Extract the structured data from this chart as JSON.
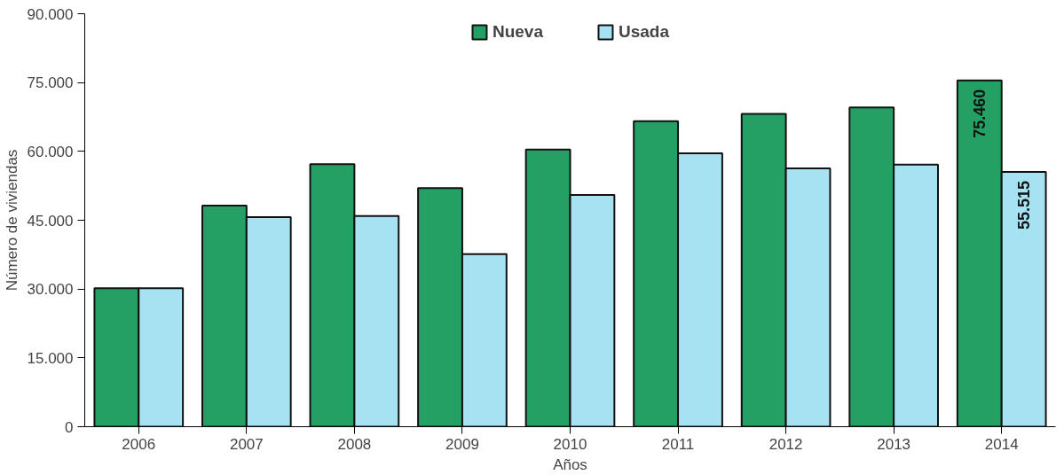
{
  "chart_data": {
    "type": "bar",
    "xlabel": "Años",
    "ylabel": "Número de viviendas",
    "categories": [
      "2006",
      "2007",
      "2008",
      "2009",
      "2010",
      "2011",
      "2012",
      "2013",
      "2014"
    ],
    "series": [
      {
        "name": "Nueva",
        "color": "#25a065",
        "values": [
          30200,
          48200,
          57200,
          52000,
          60400,
          66600,
          68200,
          69600,
          75460
        ],
        "value_labels": [
          null,
          null,
          null,
          null,
          null,
          null,
          null,
          null,
          "75.460"
        ]
      },
      {
        "name": "Usada",
        "color": "#a6e2f2",
        "values": [
          30200,
          45700,
          45900,
          37600,
          50500,
          59600,
          56300,
          57100,
          55515
        ],
        "value_labels": [
          null,
          null,
          null,
          null,
          null,
          null,
          null,
          null,
          "55.515"
        ]
      }
    ],
    "ylim": [
      0,
      90000
    ],
    "yticks": [
      {
        "value": 0,
        "label": "0"
      },
      {
        "value": 15000,
        "label": "15.000"
      },
      {
        "value": 30000,
        "label": "30.000"
      },
      {
        "value": 45000,
        "label": "45.000"
      },
      {
        "value": 60000,
        "label": "60.000"
      },
      {
        "value": 75000,
        "label": "75.000"
      },
      {
        "value": 90000,
        "label": "90.000"
      }
    ],
    "grid": false,
    "legend": "top"
  }
}
